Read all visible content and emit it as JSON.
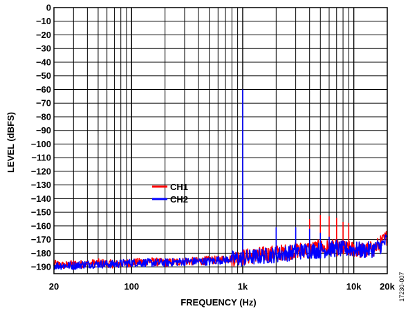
{
  "figure_id": "17230-007",
  "chart_data": {
    "type": "line",
    "title": "",
    "xlabel": "FREQUENCY (Hz)",
    "ylabel": "LEVEL (dBFS)",
    "x_scale": "log",
    "xlim": [
      20,
      20000
    ],
    "ylim": [
      -195,
      0
    ],
    "grid": true,
    "legend_position": "center-left",
    "x_ticks": [
      {
        "value": 20,
        "label": "20"
      },
      {
        "value": 100,
        "label": "100"
      },
      {
        "value": 1000,
        "label": "1k"
      },
      {
        "value": 10000,
        "label": "10k"
      },
      {
        "value": 20000,
        "label": "20k"
      }
    ],
    "y_ticks": [
      {
        "value": 0,
        "label": "0"
      },
      {
        "value": -10,
        "label": "−10"
      },
      {
        "value": -20,
        "label": "−20"
      },
      {
        "value": -30,
        "label": "−30"
      },
      {
        "value": -40,
        "label": "−40"
      },
      {
        "value": -50,
        "label": "−50"
      },
      {
        "value": -60,
        "label": "−60"
      },
      {
        "value": -70,
        "label": "−70"
      },
      {
        "value": -80,
        "label": "−80"
      },
      {
        "value": -90,
        "label": "−90"
      },
      {
        "value": -100,
        "label": "−100"
      },
      {
        "value": -110,
        "label": "−110"
      },
      {
        "value": -120,
        "label": "−120"
      },
      {
        "value": -130,
        "label": "−130"
      },
      {
        "value": -140,
        "label": "−140"
      },
      {
        "value": -150,
        "label": "−150"
      },
      {
        "value": -160,
        "label": "−160"
      },
      {
        "value": -170,
        "label": "−170"
      },
      {
        "value": -180,
        "label": "−180"
      },
      {
        "value": -190,
        "label": "−190"
      }
    ],
    "series": [
      {
        "name": "CH1",
        "color": "#ff0000",
        "x": [
          20,
          25,
          30,
          40,
          50,
          70,
          100,
          150,
          200,
          300,
          400,
          500,
          600,
          700,
          800,
          900,
          1000,
          1200,
          1500,
          2000,
          2500,
          3000,
          4000,
          5000,
          6000,
          7000,
          8000,
          10000,
          12000,
          15000,
          18000,
          20000
        ],
        "y": [
          -188,
          -189,
          -188,
          -188,
          -187,
          -188,
          -187,
          -186,
          -187,
          -186,
          -186,
          -185,
          -185,
          -184,
          -184,
          -183,
          -183,
          -182,
          -181,
          -180,
          -179,
          -178,
          -177,
          -176,
          -176,
          -176,
          -177,
          -177,
          -178,
          -177,
          -172,
          -168
        ],
        "spikes": [
          {
            "x": 4000,
            "y": -155
          },
          {
            "x": 5000,
            "y": -152
          },
          {
            "x": 6000,
            "y": -153
          },
          {
            "x": 7000,
            "y": -154
          },
          {
            "x": 8000,
            "y": -157
          },
          {
            "x": 9000,
            "y": -158
          }
        ]
      },
      {
        "name": "CH2",
        "color": "#0000ff",
        "x": [
          20,
          25,
          30,
          40,
          50,
          70,
          100,
          150,
          200,
          300,
          400,
          500,
          600,
          700,
          800,
          900,
          1000,
          1200,
          1500,
          2000,
          2500,
          3000,
          4000,
          5000,
          6000,
          7000,
          8000,
          10000,
          12000,
          15000,
          18000,
          20000
        ],
        "y": [
          -189,
          -189,
          -189,
          -188,
          -188,
          -188,
          -187,
          -187,
          -187,
          -186,
          -186,
          -186,
          -185,
          -185,
          -184,
          -184,
          -184,
          -183,
          -182,
          -181,
          -180,
          -179,
          -178,
          -178,
          -177,
          -177,
          -177,
          -177,
          -178,
          -177,
          -174,
          -170
        ],
        "spikes": [
          {
            "x": 1000,
            "y": -60
          },
          {
            "x": 2000,
            "y": -161
          },
          {
            "x": 3000,
            "y": -161
          },
          {
            "x": 4000,
            "y": -162
          },
          {
            "x": 5000,
            "y": -165
          },
          {
            "x": 6000,
            "y": -168
          },
          {
            "x": 7000,
            "y": -170
          }
        ]
      }
    ]
  }
}
